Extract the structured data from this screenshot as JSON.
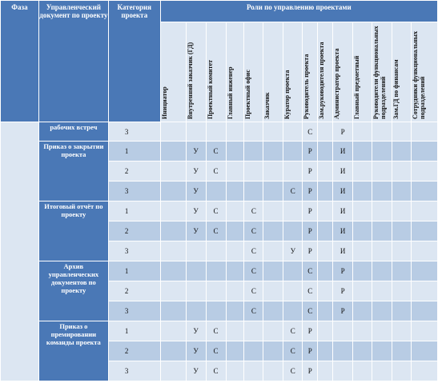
{
  "headers": {
    "phase": "Фаза",
    "document": "Управленческий документ по проекту",
    "category": "Категория проекта",
    "roles_group": "Роли по управлению проектами"
  },
  "roles": [
    "Инициатор",
    "Внутренний заказчик (ГД)",
    "Проектный комитет",
    "Главный инженер",
    "Проектный офис",
    "Заказчик",
    "Куратор проекта",
    "Руководитель проекта",
    "Зам.руководителя проекта",
    "Администратор проекта",
    "Главный предметный",
    "Руководители функциональных подразделений",
    "Зам.ГД по финансам",
    "Сотрудники функциональных подразделений"
  ],
  "groups": [
    {
      "document": "рабочих встреч",
      "rows": [
        {
          "category": "3",
          "cells": [
            "",
            "",
            "",
            "",
            "",
            "",
            "",
            "С",
            "",
            "Р",
            "",
            "",
            "",
            ""
          ]
        }
      ]
    },
    {
      "document": "Приказ о закрытии проекта",
      "rows": [
        {
          "category": "1",
          "cells": [
            "",
            "У",
            "С",
            "",
            "",
            "",
            "",
            "Р",
            "",
            "И",
            "",
            "",
            "",
            ""
          ]
        },
        {
          "category": "2",
          "cells": [
            "",
            "У",
            "С",
            "",
            "",
            "",
            "",
            "Р",
            "",
            "И",
            "",
            "",
            "",
            ""
          ]
        },
        {
          "category": "3",
          "cells": [
            "",
            "У",
            "",
            "",
            "",
            "",
            "С",
            "Р",
            "",
            "И",
            "",
            "",
            "",
            ""
          ]
        }
      ]
    },
    {
      "document": "Итоговый отчёт по проекту",
      "rows": [
        {
          "category": "1",
          "cells": [
            "",
            "У",
            "С",
            "",
            "С",
            "",
            "",
            "Р",
            "",
            "И",
            "",
            "",
            "",
            ""
          ]
        },
        {
          "category": "2",
          "cells": [
            "",
            "У",
            "С",
            "",
            "С",
            "",
            "",
            "Р",
            "",
            "И",
            "",
            "",
            "",
            ""
          ]
        },
        {
          "category": "3",
          "cells": [
            "",
            "",
            "",
            "",
            "С",
            "",
            "У",
            "Р",
            "",
            "И",
            "",
            "",
            "",
            ""
          ]
        }
      ]
    },
    {
      "document": "Архив управленческих документов по проекту",
      "rows": [
        {
          "category": "1",
          "cells": [
            "",
            "",
            "",
            "",
            "С",
            "",
            "",
            "С",
            "",
            "Р",
            "",
            "",
            "",
            ""
          ]
        },
        {
          "category": "2",
          "cells": [
            "",
            "",
            "",
            "",
            "С",
            "",
            "",
            "С",
            "",
            "Р",
            "",
            "",
            "",
            ""
          ]
        },
        {
          "category": "3",
          "cells": [
            "",
            "",
            "",
            "",
            "С",
            "",
            "",
            "С",
            "",
            "Р",
            "",
            "",
            "",
            ""
          ]
        }
      ]
    },
    {
      "document": "Приказ о премировании команды проекта",
      "rows": [
        {
          "category": "1",
          "cells": [
            "",
            "У",
            "С",
            "",
            "",
            "",
            "С",
            "Р",
            "",
            "",
            "",
            "",
            "",
            ""
          ]
        },
        {
          "category": "2",
          "cells": [
            "",
            "У",
            "С",
            "",
            "",
            "",
            "С",
            "Р",
            "",
            "",
            "",
            "",
            "",
            ""
          ]
        },
        {
          "category": "3",
          "cells": [
            "",
            "У",
            "С",
            "",
            "",
            "",
            "С",
            "Р",
            "",
            "",
            "",
            "",
            "",
            ""
          ]
        }
      ]
    }
  ]
}
